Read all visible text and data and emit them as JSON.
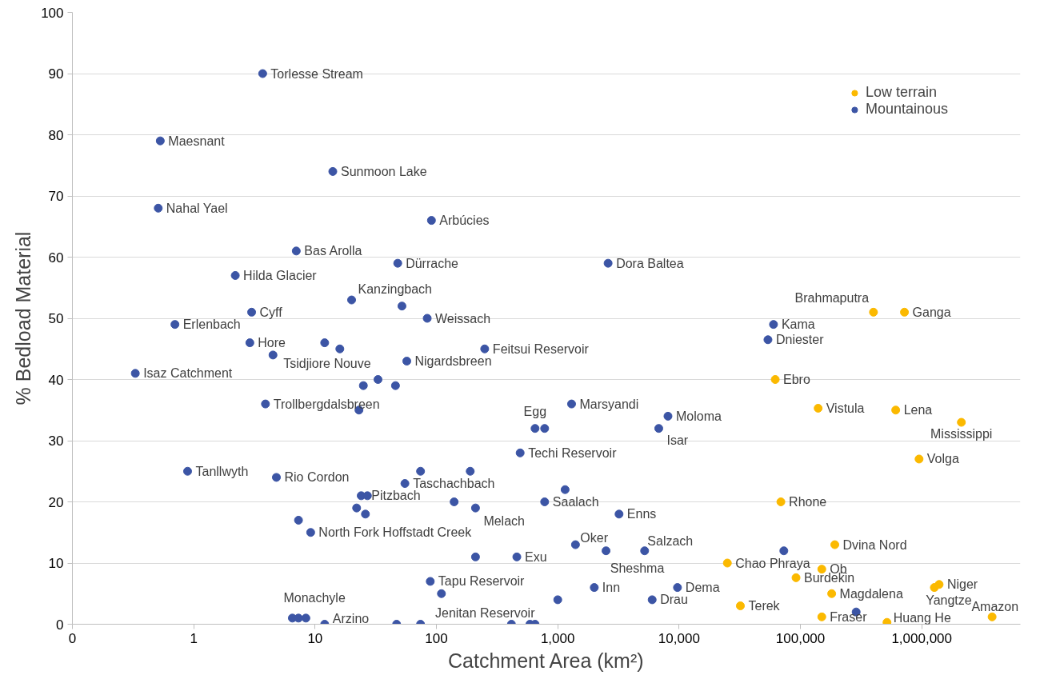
{
  "chart_data": {
    "type": "scatter",
    "xlabel": "Catchment Area (km²)",
    "ylabel": "% Bedload Material",
    "log": "x",
    "grid": "y",
    "legend": "top right",
    "marker": "circle",
    "xlim": [
      0.1,
      6500000
    ],
    "xticks": [
      {
        "value": 0.1,
        "label": "0"
      },
      1,
      10,
      100,
      {
        "value": 1000,
        "label": "1,000"
      },
      {
        "value": 10000,
        "label": "10,000"
      },
      {
        "value": 100000,
        "label": "100,000"
      },
      {
        "value": 1000000,
        "label": "1,000,000"
      }
    ],
    "ylim": [
      0,
      100
    ],
    "yticks": [
      0,
      10,
      20,
      30,
      40,
      50,
      60,
      70,
      80,
      90,
      100
    ],
    "series": [
      {
        "name": "Low terrain",
        "color": "#fbb900",
        "x": [
          400000,
          720000,
          62000,
          140000,
          610000,
          2120000,
          950000,
          69000,
          192000,
          25000,
          150000,
          92000,
          181000,
          1390000,
          1270000,
          32000,
          150000,
          517000,
          3800000
        ],
        "values": [
          51,
          51,
          40,
          35.3,
          35,
          33,
          27,
          20,
          13,
          10,
          9,
          7.6,
          5,
          6.5,
          6,
          3,
          1.2,
          0.3,
          1.2
        ]
      },
      {
        "name": "Mountainous",
        "color": "#3c55a5",
        "x": [
          3.7,
          0.53,
          14,
          0.51,
          91,
          7.0,
          48,
          2600,
          2.2,
          20,
          52,
          3.0,
          84,
          0.7,
          2.9,
          12,
          16,
          250,
          4.5,
          57,
          0.33,
          25,
          33,
          46,
          3.9,
          23,
          650,
          780,
          1300,
          8100,
          6800,
          490,
          0.89,
          4.8,
          74,
          190,
          55,
          24,
          27,
          140,
          780,
          22,
          210,
          26,
          7.3,
          9.2,
          210,
          460,
          89,
          110,
          6.5,
          7.3,
          8.4,
          12,
          47,
          74,
          415,
          590,
          650,
          1150,
          3200,
          1400,
          2500,
          5200,
          2000,
          1000,
          9700,
          6000,
          73000,
          288000,
          60000,
          54000
        ],
        "values": [
          90,
          79,
          74,
          68,
          66,
          61,
          59,
          59,
          57,
          53,
          52,
          51,
          50,
          49,
          46,
          46,
          45,
          45,
          44,
          43,
          41,
          39,
          40,
          39,
          36,
          35,
          32,
          32,
          36,
          34,
          32,
          28,
          25,
          24,
          25,
          25,
          23,
          21,
          21,
          20,
          20,
          19,
          19,
          18,
          17,
          15,
          11,
          11,
          7,
          5,
          1,
          1,
          1,
          0,
          0,
          0,
          0,
          0,
          0,
          22,
          18,
          13,
          12,
          12,
          6,
          4,
          6,
          4,
          12,
          2,
          49,
          46.5
        ]
      }
    ],
    "annotations": [
      {
        "text": "Torlesse Stream",
        "x": 3.7,
        "y": 90
      },
      {
        "text": "Maesnant",
        "x": 0.53,
        "y": 79
      },
      {
        "text": "Sunmoon Lake",
        "x": 14,
        "y": 74
      },
      {
        "text": "Nahal Yael",
        "x": 0.51,
        "y": 68
      },
      {
        "text": "Arbúcies",
        "x": 91,
        "y": 66
      },
      {
        "text": "Bas Arolla",
        "x": 7.0,
        "y": 61
      },
      {
        "text": "Dürrache",
        "x": 48,
        "y": 59
      },
      {
        "text": "Dora Baltea",
        "x": 2600,
        "y": 59
      },
      {
        "text": "Hilda Glacier",
        "x": 2.2,
        "y": 57
      },
      {
        "text": "Kanzingbach",
        "x": 20,
        "y": 53
      },
      {
        "text": "Cyff",
        "x": 3.0,
        "y": 51
      },
      {
        "text": "Weissach",
        "x": 84,
        "y": 50
      },
      {
        "text": "Erlenbach",
        "x": 0.7,
        "y": 49
      },
      {
        "text": "Hore",
        "x": 2.9,
        "y": 46
      },
      {
        "text": "Feitsui Reservoir",
        "x": 250,
        "y": 45
      },
      {
        "text": "Tsidjiore Nouve",
        "x": 4.5,
        "y": 44
      },
      {
        "text": "Nigardsbreen",
        "x": 57,
        "y": 43
      },
      {
        "text": "Isaz Catchment",
        "x": 0.33,
        "y": 41
      },
      {
        "text": "Trollbergdalsbreen",
        "x": 3.9,
        "y": 36
      },
      {
        "text": "Egg",
        "x": 650,
        "y": 32
      },
      {
        "text": "Marsyandi",
        "x": 1300,
        "y": 36
      },
      {
        "text": "Moloma",
        "x": 8100,
        "y": 34
      },
      {
        "text": "Isar",
        "x": 6800,
        "y": 32
      },
      {
        "text": "Techi Reservoir",
        "x": 490,
        "y": 28
      },
      {
        "text": "Tanllwyth",
        "x": 0.89,
        "y": 25
      },
      {
        "text": "Rio Cordon",
        "x": 4.8,
        "y": 24
      },
      {
        "text": "Taschachbach",
        "x": 55,
        "y": 23
      },
      {
        "text": "Pitzbach",
        "x": 27,
        "y": 21
      },
      {
        "text": "Saalach",
        "x": 780,
        "y": 20
      },
      {
        "text": "Melach",
        "x": 210,
        "y": 19
      },
      {
        "text": "North Fork Hoffstadt Creek",
        "x": 9.2,
        "y": 15
      },
      {
        "text": "Exu",
        "x": 460,
        "y": 11
      },
      {
        "text": "Tapu Reservoir",
        "x": 89,
        "y": 7
      },
      {
        "text": "Monachyle",
        "x": 7.3,
        "y": 1
      },
      {
        "text": "Arzino",
        "x": 12,
        "y": 0
      },
      {
        "text": "Jenitan Reservoir",
        "x": 415,
        "y": 0
      },
      {
        "text": "Enns",
        "x": 3200,
        "y": 18
      },
      {
        "text": "Oker",
        "x": 1400,
        "y": 13
      },
      {
        "text": "Salzach",
        "x": 5200,
        "y": 12
      },
      {
        "text": "Sheshma",
        "x": 2500,
        "y": 12
      },
      {
        "text": "Inn",
        "x": 2000,
        "y": 6
      },
      {
        "text": "Dema",
        "x": 9700,
        "y": 6
      },
      {
        "text": "Drau",
        "x": 6000,
        "y": 4
      },
      {
        "text": "Kama",
        "x": 60000,
        "y": 49
      },
      {
        "text": "Dniester",
        "x": 54000,
        "y": 46.5
      },
      {
        "text": "Brahmaputra",
        "x": 400000,
        "y": 51
      },
      {
        "text": "Ganga",
        "x": 720000,
        "y": 51
      },
      {
        "text": "Ebro",
        "x": 62000,
        "y": 40
      },
      {
        "text": "Vistula",
        "x": 140000,
        "y": 35.3
      },
      {
        "text": "Lena",
        "x": 610000,
        "y": 35
      },
      {
        "text": "Mississippi",
        "x": 2120000,
        "y": 33
      },
      {
        "text": "Volga",
        "x": 950000,
        "y": 27
      },
      {
        "text": "Rhone",
        "x": 69000,
        "y": 20
      },
      {
        "text": "Dvina Nord",
        "x": 192000,
        "y": 13
      },
      {
        "text": "Chao Phraya",
        "x": 25000,
        "y": 10
      },
      {
        "text": "Ob",
        "x": 150000,
        "y": 9
      },
      {
        "text": "Burdekin",
        "x": 92000,
        "y": 7.6
      },
      {
        "text": "Magdalena",
        "x": 181000,
        "y": 5
      },
      {
        "text": "Niger",
        "x": 1390000,
        "y": 6.5
      },
      {
        "text": "Yangtze",
        "x": 1270000,
        "y": 6
      },
      {
        "text": "Terek",
        "x": 32000,
        "y": 3
      },
      {
        "text": "Fraser",
        "x": 150000,
        "y": 1.2
      },
      {
        "text": "Huang He",
        "x": 517000,
        "y": 0.3
      },
      {
        "text": "Amazon",
        "x": 3800000,
        "y": 1.2
      }
    ]
  }
}
